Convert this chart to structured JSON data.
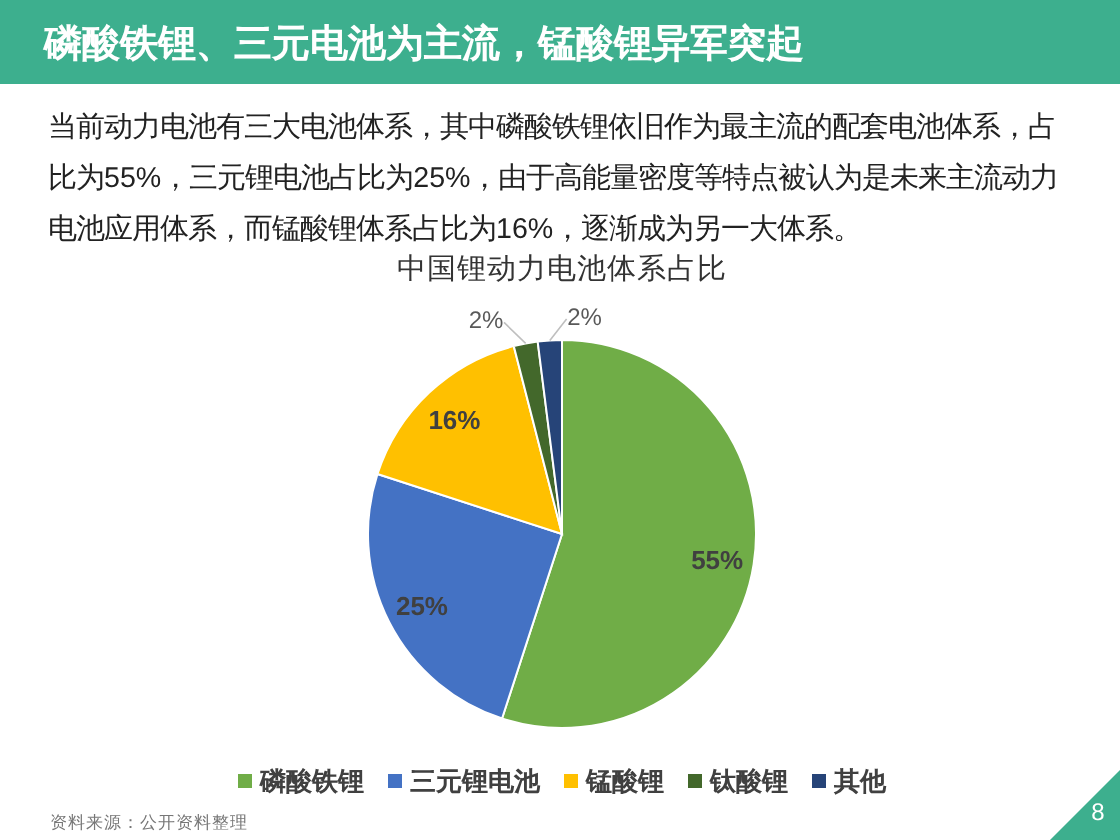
{
  "chart_data": {
    "type": "pie",
    "title": "磷酸铁锂、三元电池为主流，锰酸锂异军突起",
    "subtitle": "当前动力电池有三大电池体系，其中磷酸铁锂依旧作为最主流的配套电池体系，占比为55%，三元锂电池占比为25%，由于高能量密度等特点被认为是未来主流动力电池应用体系，而锰酸锂体系占比为16%，逐渐成为另一大体系。",
    "annotations": [
      "中国锂动力电池体系占比",
      "资料来源：公开资料整理",
      "8"
    ],
    "categories": [
      "磷酸铁锂",
      "三元锂电池",
      "锰酸锂",
      "钛酸锂",
      "其他"
    ],
    "values": [
      55,
      25,
      16,
      2,
      2
    ],
    "value_labels": [
      "55%",
      "25%",
      "16%",
      "2%",
      "2%"
    ],
    "colors": [
      "#70ad47",
      "#4472c4",
      "#ffc000",
      "#43682b",
      "#264478"
    ],
    "legend": "bottom"
  }
}
